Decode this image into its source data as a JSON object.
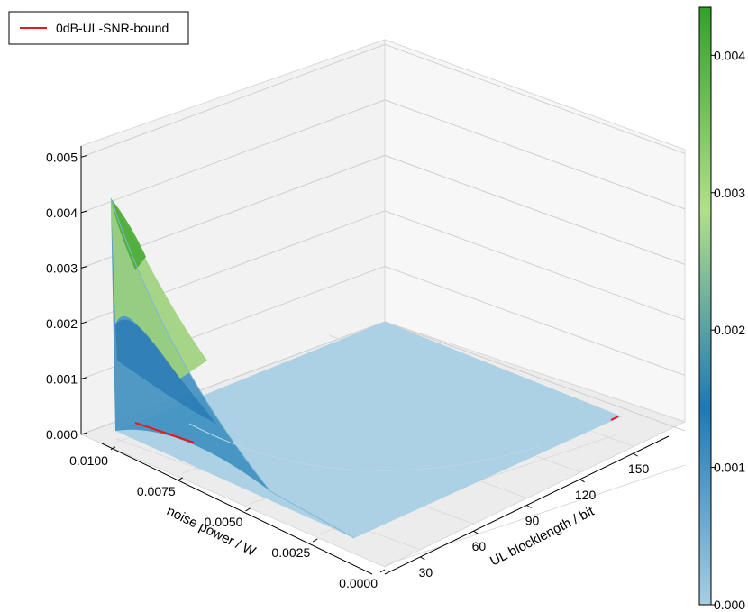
{
  "chart_data": {
    "type": "surface",
    "legend": {
      "placement": "top-left",
      "entries": [
        {
          "label": "0dB-UL-SNR-bound",
          "color": "#e8191c"
        }
      ]
    },
    "x_axis": {
      "label": "UL blocklength / bit",
      "ticks": [
        "30",
        "60",
        "90",
        "120",
        "150"
      ],
      "range": [
        10,
        170
      ]
    },
    "y_axis": {
      "label": "noise power / W",
      "ticks": [
        "0.0000",
        "0.0025",
        "0.0050",
        "0.0075",
        "0.0100"
      ],
      "range": [
        0,
        0.0105
      ]
    },
    "z_axis": {
      "label": "",
      "ticks": [
        "0.000",
        "0.001",
        "0.002",
        "0.003",
        "0.004",
        "0.005"
      ],
      "range": [
        0,
        0.0052
      ]
    },
    "colorbar": {
      "ticks": [
        "0.000",
        "0.001",
        "0.002",
        "0.003",
        "0.004"
      ],
      "range": [
        0,
        0.00435
      ],
      "colormap": [
        "#a6cee3",
        "#1f78b4",
        "#b2df8a",
        "#33a02c"
      ]
    },
    "surface": {
      "description_values": "z is near zero everywhere except at the smallest UL blocklength, where it rises with noise power",
      "edge_low_blocklength": {
        "x": 10,
        "y": [
          0,
          0.0025,
          0.005,
          0.0075,
          0.0103
        ],
        "z": [
          0,
          0.0003,
          0.0013,
          0.0026,
          0.0043
        ]
      }
    },
    "bound_line": {
      "name": "0dB-UL-SNR-bound",
      "z": 0
    },
    "grid": true
  }
}
